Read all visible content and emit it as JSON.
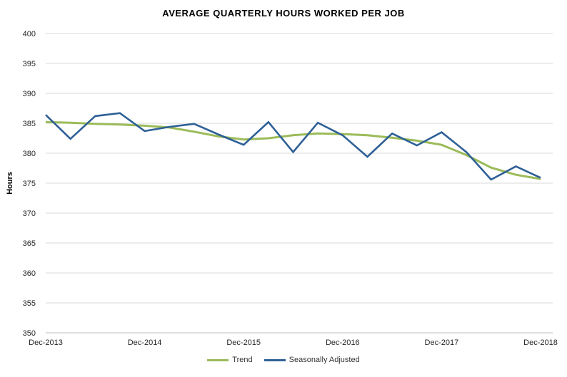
{
  "title": "AVERAGE QUARTERLY HOURS WORKED PER JOB",
  "y_axis": {
    "title": "Hours",
    "ticks": [
      400,
      395,
      390,
      385,
      380,
      375,
      370,
      365,
      360,
      355,
      350
    ]
  },
  "x_axis": {
    "ticks": [
      "Dec-2013",
      "Dec-2014",
      "Dec-2015",
      "Dec-2016",
      "Dec-2017",
      "Dec-2018"
    ],
    "tick_indices": [
      0,
      4,
      8,
      12,
      16,
      20
    ]
  },
  "legend": {
    "items": [
      {
        "label": "Trend",
        "color": "#9BBB59"
      },
      {
        "label": "Seasonally Adjusted",
        "color": "#2E6096"
      }
    ]
  },
  "colors": {
    "gridline": "#d9d9d9",
    "baseline": "#bfbfbf",
    "tick_text": "#262626"
  },
  "chart_data": {
    "type": "line",
    "title": "AVERAGE QUARTERLY HOURS WORKED PER JOB",
    "xlabel": "",
    "ylabel": "Hours",
    "ylim": [
      350,
      400
    ],
    "y_tick_step": 5,
    "grid": true,
    "legend_position": "bottom",
    "x": [
      "Dec-2013",
      "Mar-2014",
      "Jun-2014",
      "Sep-2014",
      "Dec-2014",
      "Mar-2015",
      "Jun-2015",
      "Sep-2015",
      "Dec-2015",
      "Mar-2016",
      "Jun-2016",
      "Sep-2016",
      "Dec-2016",
      "Mar-2017",
      "Jun-2017",
      "Sep-2017",
      "Dec-2017",
      "Mar-2018",
      "Jun-2018",
      "Sep-2018",
      "Dec-2018"
    ],
    "x_ticks_shown": [
      "Dec-2013",
      "Dec-2014",
      "Dec-2015",
      "Dec-2016",
      "Dec-2017",
      "Dec-2018"
    ],
    "series": [
      {
        "name": "Trend",
        "color": "#9BBB59",
        "values": [
          385.2,
          385.1,
          384.9,
          384.8,
          384.6,
          384.3,
          383.6,
          382.8,
          382.3,
          382.5,
          383.0,
          383.3,
          383.2,
          383.0,
          382.6,
          382.1,
          381.4,
          379.7,
          377.6,
          376.4,
          375.7
        ]
      },
      {
        "name": "Seasonally Adjusted",
        "color": "#2E6096",
        "values": [
          386.4,
          382.4,
          386.2,
          386.7,
          383.7,
          384.4,
          384.9,
          383.1,
          381.4,
          385.2,
          380.2,
          385.1,
          383.0,
          379.4,
          383.3,
          381.3,
          383.5,
          380.2,
          375.6,
          377.8,
          375.9
        ]
      }
    ]
  }
}
